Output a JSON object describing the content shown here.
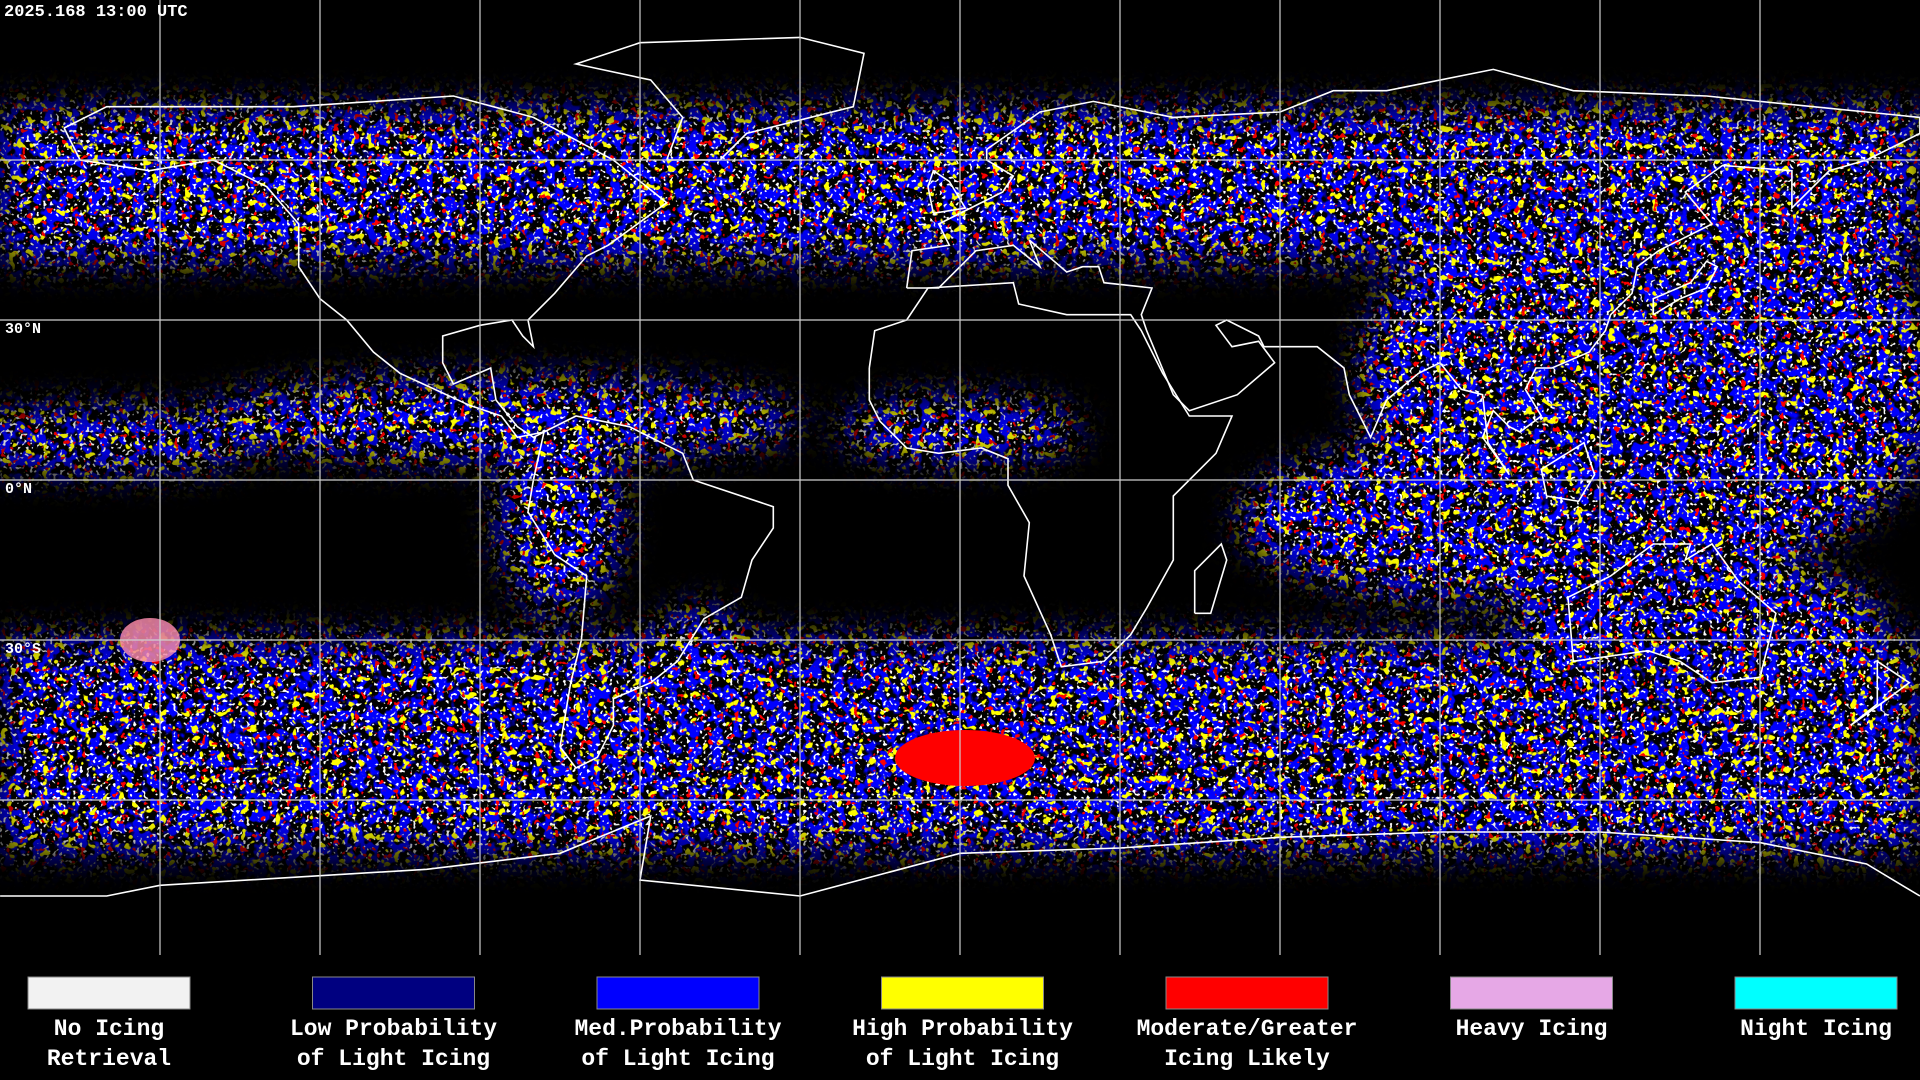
{
  "header": {
    "timestamp": "2025.168 13:00 UTC"
  },
  "map": {
    "latitude_labels": [
      "30°N",
      "0°N",
      "30°S"
    ]
  },
  "legend": [
    {
      "color": "#f2f2f2",
      "label": [
        "No Icing",
        "Retrieval"
      ]
    },
    {
      "color": "#000080",
      "label": [
        "Low Probability",
        "of Light Icing"
      ]
    },
    {
      "color": "#0000ff",
      "label": [
        "Med.Probability",
        "of Light Icing"
      ]
    },
    {
      "color": "#ffff00",
      "label": [
        "High Probability",
        "of Light Icing"
      ]
    },
    {
      "color": "#ff0000",
      "label": [
        "Moderate/Greater",
        "Icing Likely"
      ]
    },
    {
      "color": "#e6a8e6",
      "label": [
        "Heavy Icing",
        ""
      ]
    },
    {
      "color": "#00ffff",
      "label": [
        "Night Icing",
        ""
      ]
    }
  ]
}
